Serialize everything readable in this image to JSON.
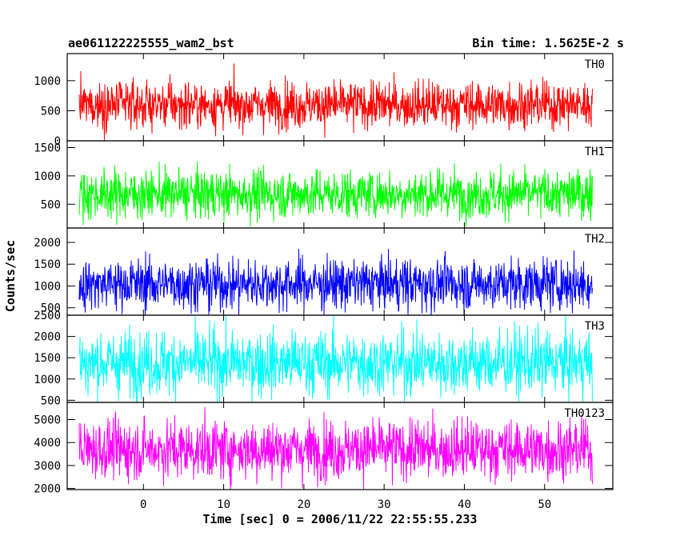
{
  "header": {
    "title": "ae061122225555_wam2_bst",
    "bin_time": "Bin time: 1.5625E-2 s"
  },
  "chart_data": {
    "type": "line",
    "xlabel": "Time [sec] 0 = 2006/11/22 22:55:55.233",
    "ylabel": "Counts/sec",
    "xlim": [
      -9.5,
      58.5
    ],
    "xticks": [
      0,
      10,
      20,
      30,
      40,
      50
    ],
    "x_data_range": [
      -8,
      56
    ],
    "panels": [
      {
        "name": "TH0",
        "color": "#ff0000",
        "ylim": [
          0,
          1450
        ],
        "yticks": [
          0,
          500,
          1000
        ],
        "mean": 600,
        "spread": 330,
        "range": [
          0,
          1450
        ]
      },
      {
        "name": "TH1",
        "color": "#00ff00",
        "ylim": [
          80,
          1620
        ],
        "yticks": [
          500,
          1000,
          1500
        ],
        "mean": 680,
        "spread": 360,
        "range": [
          80,
          1620
        ]
      },
      {
        "name": "TH2",
        "color": "#0000ff",
        "ylim": [
          330,
          2330
        ],
        "yticks": [
          500,
          1000,
          1500,
          2000
        ],
        "mean": 1050,
        "spread": 500,
        "range": [
          330,
          2330
        ]
      },
      {
        "name": "TH3",
        "color": "#00ffff",
        "ylim": [
          450,
          2500
        ],
        "yticks": [
          500,
          1000,
          1500,
          2000,
          2500
        ],
        "mean": 1380,
        "spread": 650,
        "range": [
          450,
          2500
        ]
      },
      {
        "name": "TH0123",
        "color": "#ff00ff",
        "ylim": [
          1950,
          5750
        ],
        "yticks": [
          2000,
          3000,
          4000,
          5000
        ],
        "mean": 3700,
        "spread": 1100,
        "range": [
          1950,
          5750
        ]
      }
    ]
  }
}
